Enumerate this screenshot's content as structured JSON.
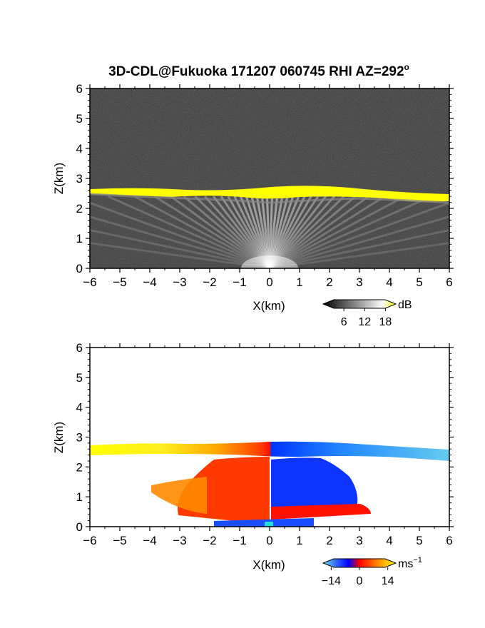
{
  "chart_data": [
    {
      "type": "heatmap",
      "title_main": "3D-CDL@Fukuoka 171207 060745 RHI AZ=292",
      "title_sup": "o",
      "xlabel": "X(km)",
      "ylabel": "Z(km)",
      "xlim": [
        -6,
        6
      ],
      "ylim": [
        0,
        6
      ],
      "x_ticks": [
        "-6",
        "-5",
        "-4",
        "-3",
        "-2",
        "-1",
        "0",
        "1",
        "2",
        "3",
        "4",
        "5",
        "6"
      ],
      "y_ticks": [
        "0",
        "1",
        "2",
        "3",
        "4",
        "5",
        "6"
      ],
      "background_color": "#111111",
      "features": [
        {
          "name": "cloud-base layer",
          "z_km": [
            2.3,
            2.75
          ],
          "x_km": [
            -6,
            6
          ],
          "color": "#ffff00"
        },
        {
          "name": "radial beam fan",
          "origin": [
            0,
            0
          ],
          "z_top_km": 2.4,
          "color": "#ffffff"
        }
      ],
      "colorbar": {
        "unit": "dB",
        "ticks": [
          "6",
          "12",
          "18"
        ],
        "range": [
          0,
          21
        ],
        "colors": [
          "#000000",
          "#ffffff",
          "#ffff00"
        ]
      }
    },
    {
      "type": "heatmap",
      "xlabel": "X(km)",
      "ylabel": "Z(km)",
      "xlim": [
        -6,
        6
      ],
      "ylim": [
        0,
        6
      ],
      "x_ticks": [
        "-6",
        "-5",
        "-4",
        "-3",
        "-2",
        "-1",
        "0",
        "1",
        "2",
        "3",
        "4",
        "5",
        "6"
      ],
      "y_ticks": [
        "0",
        "1",
        "2",
        "3",
        "4",
        "5",
        "6"
      ],
      "background_color": "#ffffff",
      "features": [
        {
          "name": "layer band",
          "z_km": [
            2.35,
            2.8
          ],
          "x_km": [
            -6,
            6
          ],
          "gradient": [
            "#ffff00",
            "#ff9900",
            "#ff2200",
            "#0044ff",
            "#66ccff"
          ]
        },
        {
          "name": "receding region",
          "x_km": [
            -3.8,
            0
          ],
          "z_km": [
            0,
            2.2
          ],
          "color": "#ff3300"
        },
        {
          "name": "approaching region",
          "x_km": [
            0,
            2.5
          ],
          "z_km": [
            0,
            2.3
          ],
          "color": "#0033ff"
        },
        {
          "name": "near-ground positive",
          "x_km": [
            0.2,
            3.5
          ],
          "z_km": [
            0.2,
            0.7
          ],
          "color": "#ff1100"
        }
      ],
      "colorbar": {
        "unit": "ms",
        "unit_sup": "−1",
        "ticks": [
          "−14",
          "0",
          "14"
        ],
        "range": [
          -18,
          18
        ],
        "colors": [
          "#66ddee",
          "#0000ff",
          "#ff0000",
          "#ffff00"
        ]
      }
    }
  ]
}
